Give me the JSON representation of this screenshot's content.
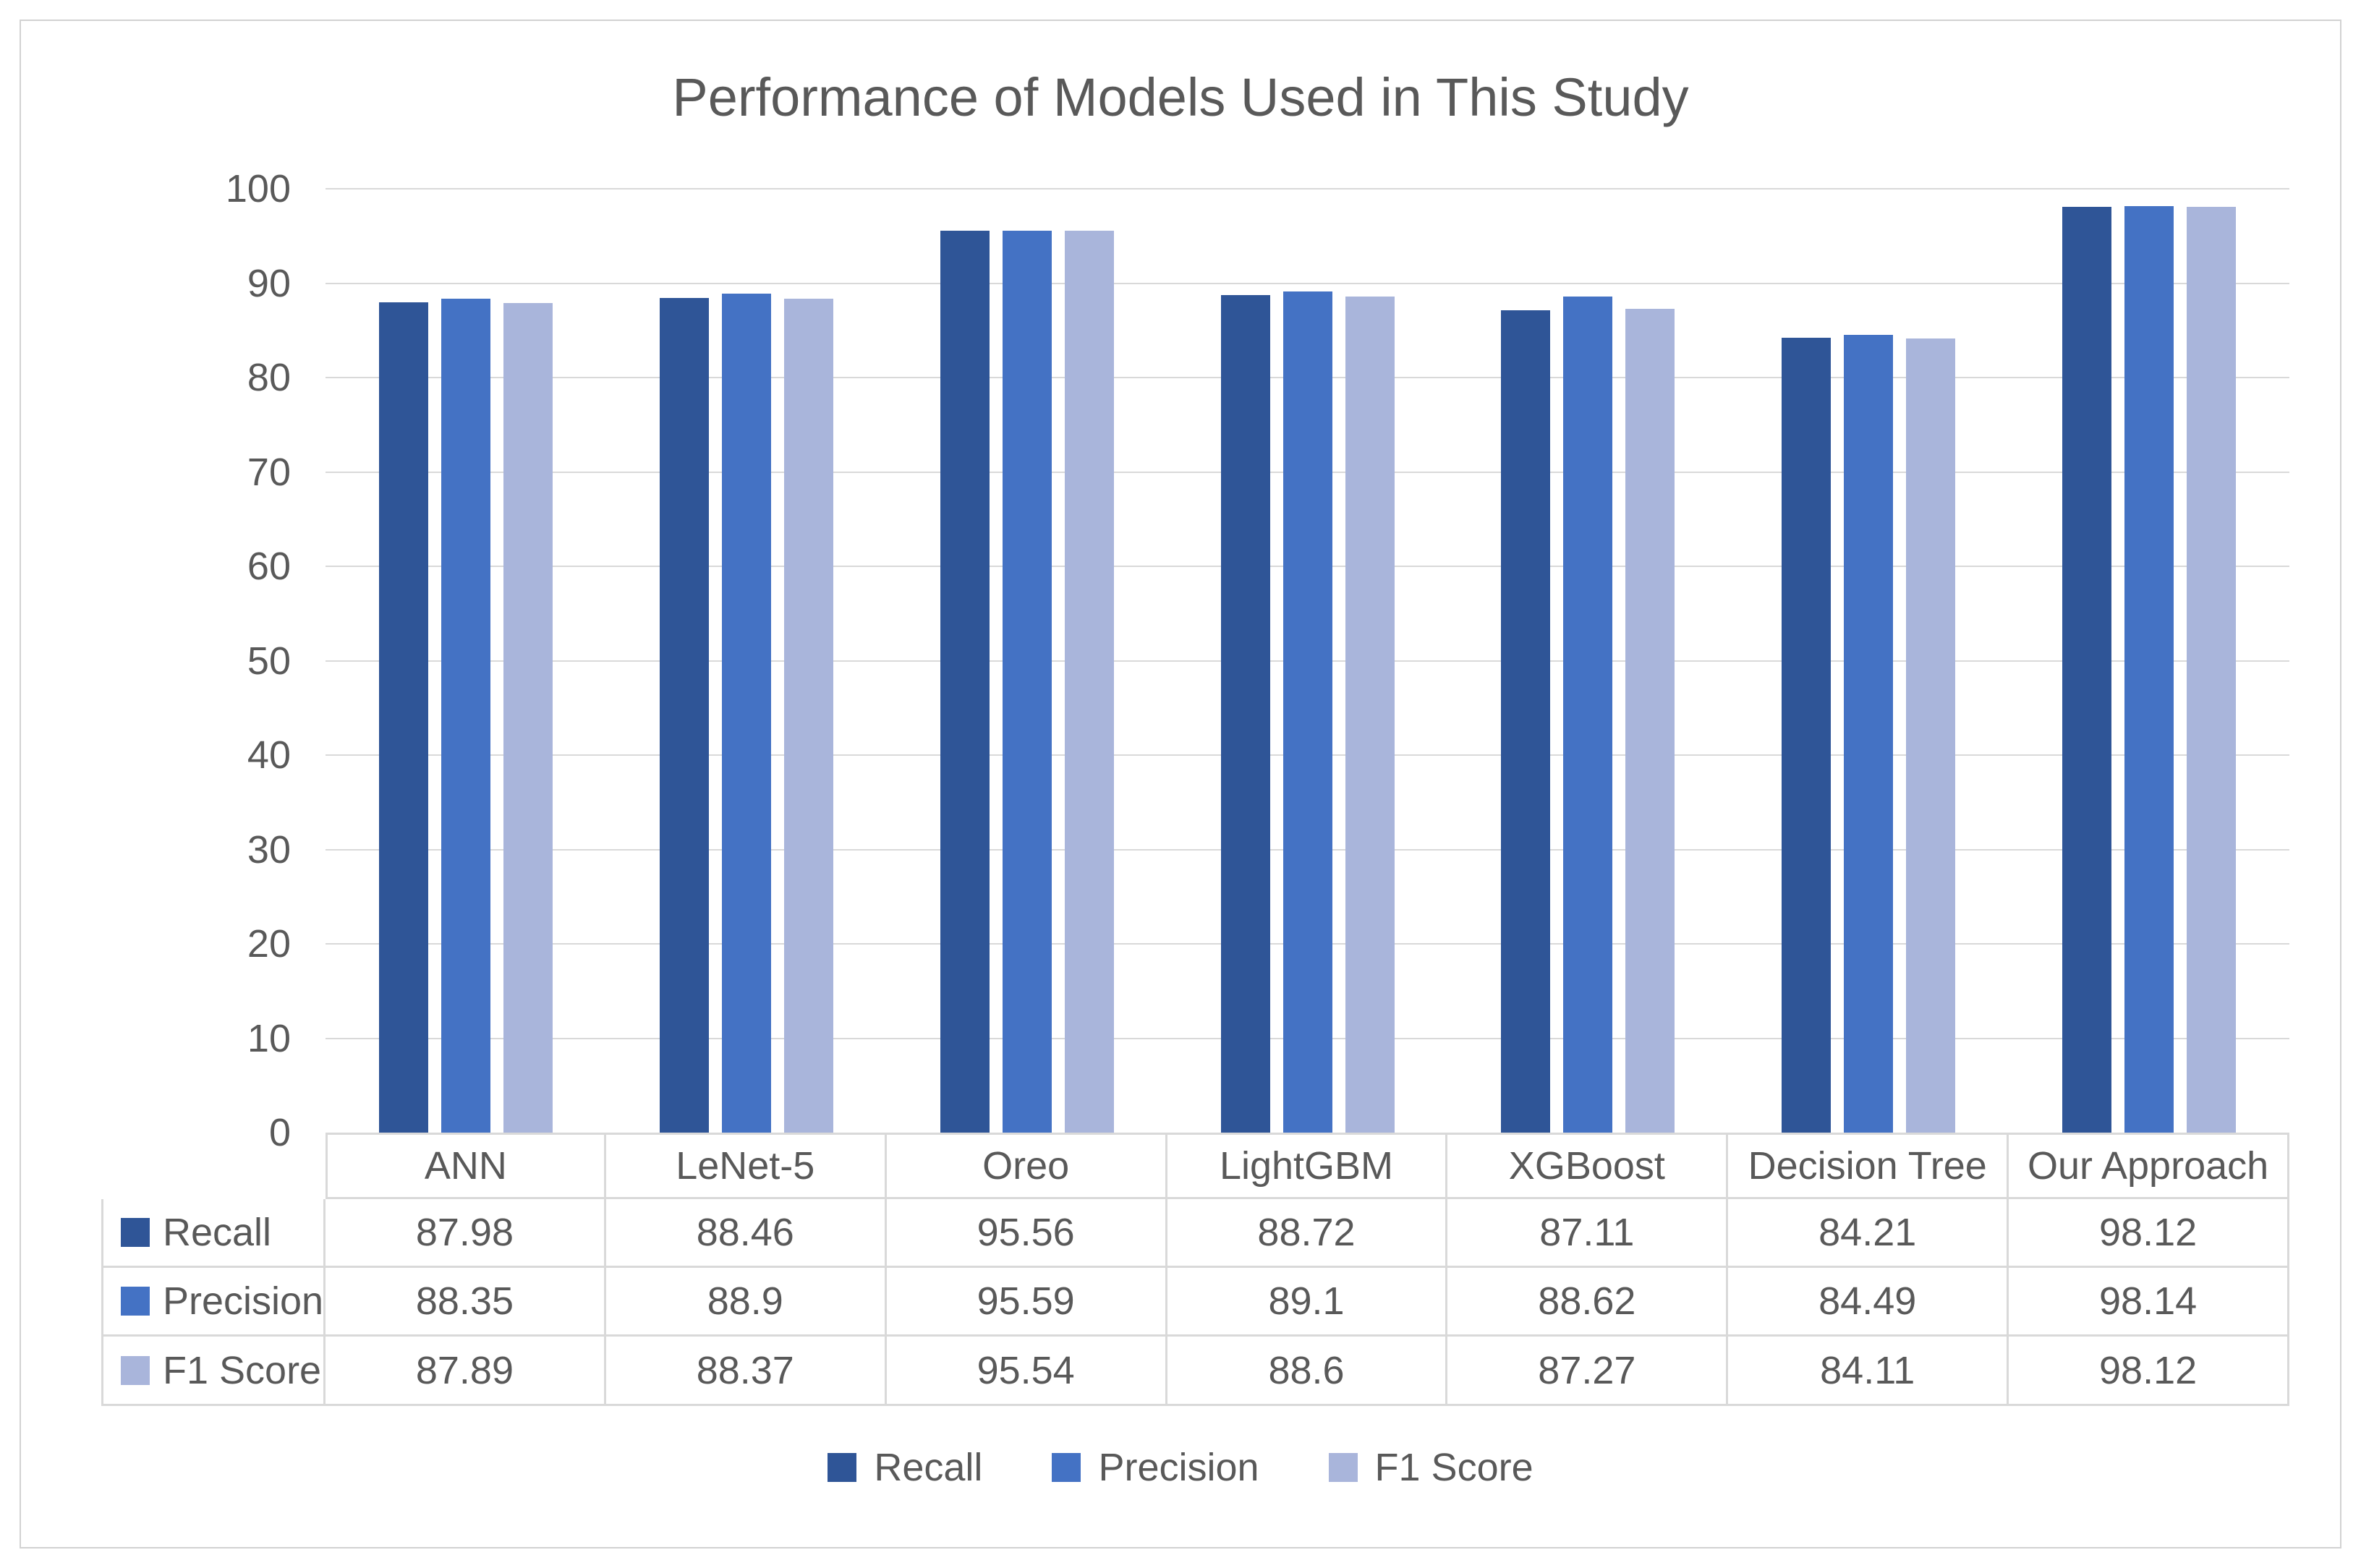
{
  "page": {
    "background_color": "#ffffff",
    "frame_border_color": "#d2d2d2",
    "text_color": "#595959",
    "gridline_color": "#d9d9d9",
    "table_border_color": "#d9d9d9"
  },
  "chart_data": {
    "type": "bar",
    "title": "Performance of Models Used in This Study",
    "xlabel": "",
    "ylabel": "",
    "ylim": [
      0,
      100
    ],
    "yticks": [
      0,
      10,
      20,
      30,
      40,
      50,
      60,
      70,
      80,
      90,
      100
    ],
    "grid": true,
    "legend_position": "bottom",
    "data_table_shown": true,
    "categories": [
      "ANN",
      "LeNet-5",
      "Oreo",
      "LightGBM",
      "XGBoost",
      "Decision Tree",
      "Our Approach"
    ],
    "series": [
      {
        "name": "Recall",
        "color": "#2F5597",
        "values": [
          87.98,
          88.46,
          95.56,
          88.72,
          87.11,
          84.21,
          98.12
        ]
      },
      {
        "name": "Precision",
        "color": "#4472C4",
        "values": [
          88.35,
          88.9,
          95.59,
          89.1,
          88.62,
          84.49,
          98.14
        ]
      },
      {
        "name": "F1 Score",
        "color": "#A9B5DB",
        "values": [
          87.89,
          88.37,
          95.54,
          88.6,
          87.27,
          84.11,
          98.12
        ]
      }
    ]
  }
}
